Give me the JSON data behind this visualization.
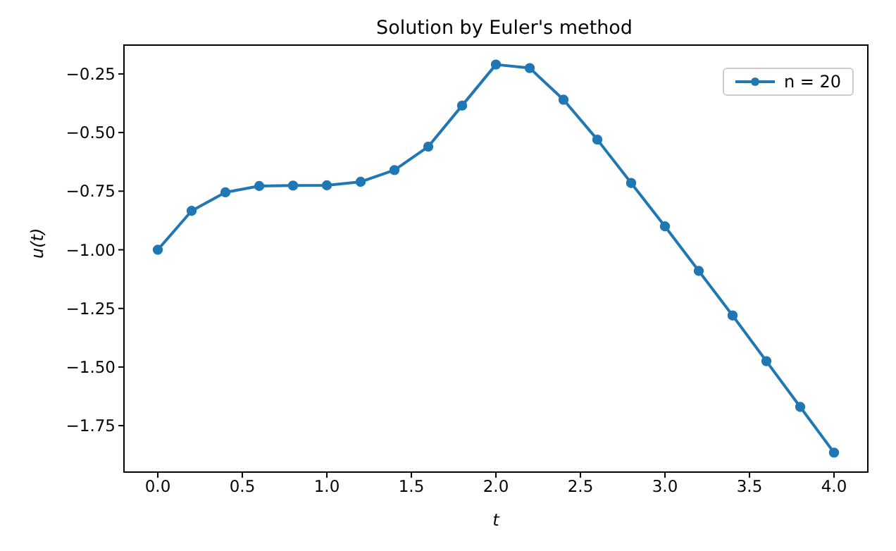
{
  "chart_data": {
    "type": "line",
    "title": "Solution by Euler's method",
    "xlabel": "t",
    "ylabel": "u(t)",
    "x": [
      0,
      0.2,
      0.4,
      0.6,
      0.8,
      1.0,
      1.2,
      1.4,
      1.6,
      1.8,
      2.0,
      2.2,
      2.4,
      2.6,
      2.8,
      3.0,
      3.2,
      3.4,
      3.6,
      3.8,
      4.0
    ],
    "series": [
      {
        "name": "n = 20",
        "color": "#1f77b4",
        "values": [
          -1.0,
          -0.834,
          -0.755,
          -0.728,
          -0.726,
          -0.725,
          -0.71,
          -0.66,
          -0.56,
          -0.385,
          -0.21,
          -0.225,
          -0.36,
          -0.53,
          -0.715,
          -0.9,
          -1.09,
          -1.28,
          -1.475,
          -1.67,
          -1.865
        ]
      }
    ],
    "xlim": [
      -0.2,
      4.2
    ],
    "xticks": [
      {
        "value": 0,
        "label": "0.0"
      },
      {
        "value": 0.5,
        "label": "0.5"
      },
      {
        "value": 1,
        "label": "1.0"
      },
      {
        "value": 1.5,
        "label": "1.5"
      },
      {
        "value": 2,
        "label": "2.0"
      },
      {
        "value": 2.5,
        "label": "2.5"
      },
      {
        "value": 3,
        "label": "3.0"
      },
      {
        "value": 3.5,
        "label": "3.5"
      },
      {
        "value": 4,
        "label": "4.0"
      }
    ],
    "ylim": [
      -1.948,
      -0.127
    ],
    "yticks": [
      {
        "value": -1.75,
        "label": "−1.75"
      },
      {
        "value": -1.5,
        "label": "−1.50"
      },
      {
        "value": -1.25,
        "label": "−1.25"
      },
      {
        "value": -1,
        "label": "−1.00"
      },
      {
        "value": -0.75,
        "label": "−0.75"
      },
      {
        "value": -0.5,
        "label": "−0.50"
      },
      {
        "value": -0.25,
        "label": "−0.25"
      }
    ],
    "marker": "circle",
    "line_style": "solid",
    "legend": "top right",
    "grid": false
  }
}
